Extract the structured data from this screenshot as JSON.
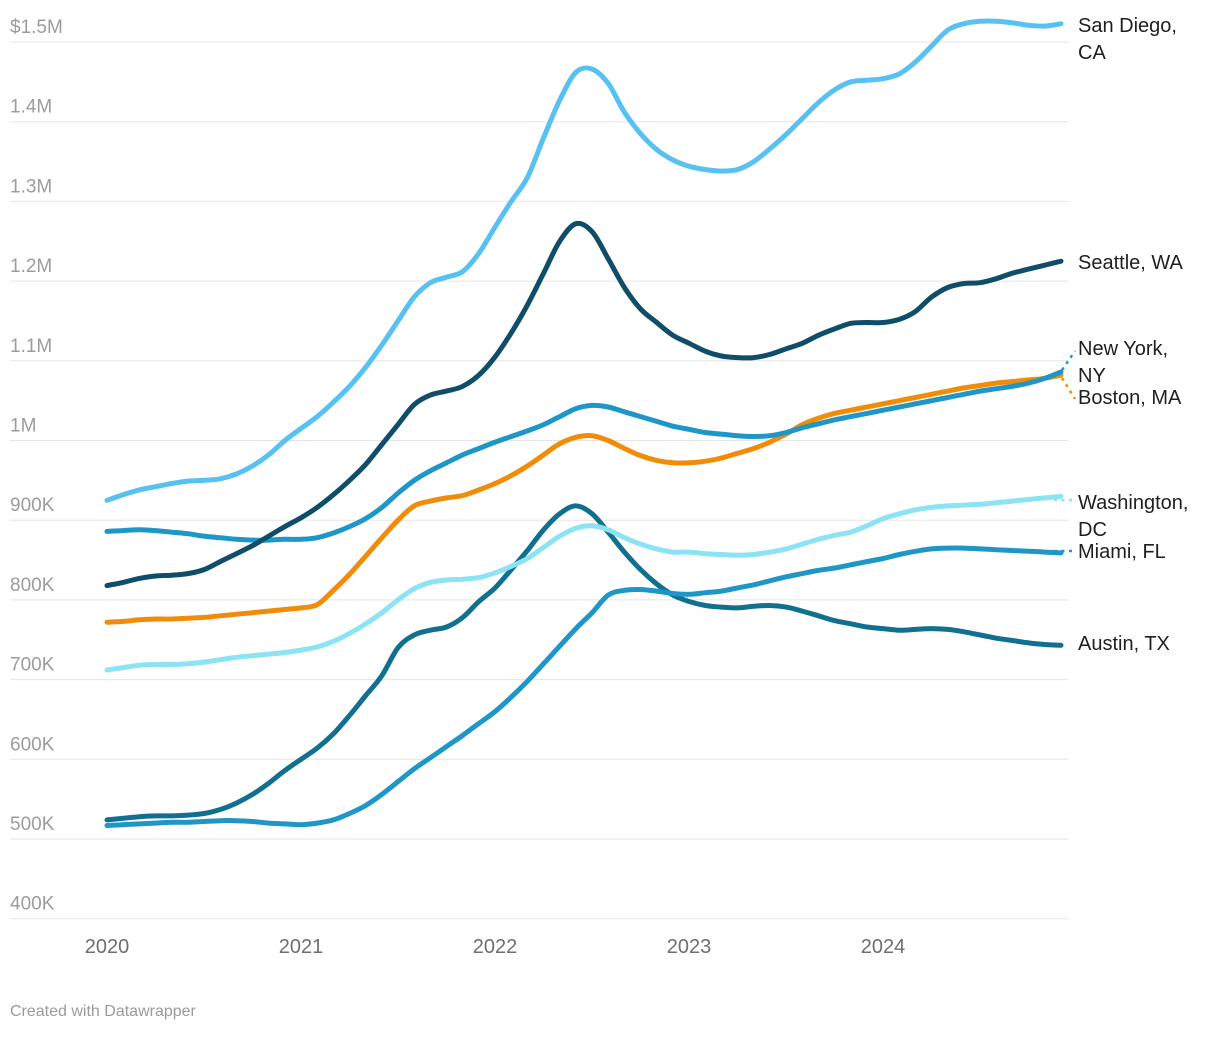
{
  "chart_data": {
    "type": "line",
    "title": "",
    "y_unit": "USD thousands",
    "x_start": "2020-01",
    "x_interval": "monthly",
    "x_end": "2024-12",
    "x_ticks": [
      "2020",
      "2021",
      "2022",
      "2023",
      "2024"
    ],
    "y_ticks": [
      "$1.5M",
      "1.4M",
      "1.3M",
      "1.2M",
      "1.1M",
      "1M",
      "900K",
      "800K",
      "700K",
      "600K",
      "500K",
      "400K"
    ],
    "y_tick_values": [
      1500,
      1400,
      1300,
      1200,
      1100,
      1000,
      900,
      800,
      700,
      600,
      500,
      400
    ],
    "ylim": [
      400,
      1550
    ],
    "grid": "horizontal",
    "legend_position": "right-edge-labels",
    "series": [
      {
        "id": "san_diego",
        "label": "San Diego, CA",
        "label_lines": [
          "San Diego,",
          "CA"
        ],
        "color": "#57C1F1",
        "dash_leader": false,
        "values": [
          925,
          932,
          938,
          942,
          946,
          949,
          950,
          952,
          958,
          968,
          982,
          1000,
          1015,
          1030,
          1048,
          1068,
          1092,
          1120,
          1150,
          1180,
          1198,
          1205,
          1212,
          1235,
          1268,
          1300,
          1330,
          1380,
          1427,
          1462,
          1466,
          1448,
          1412,
          1385,
          1365,
          1352,
          1344,
          1340,
          1338,
          1340,
          1350,
          1366,
          1384,
          1404,
          1424,
          1440,
          1450,
          1452,
          1454,
          1460,
          1475,
          1495,
          1515,
          1523,
          1526,
          1526,
          1524,
          1521,
          1520,
          1523
        ]
      },
      {
        "id": "seattle",
        "label": "Seattle, WA",
        "label_lines": [
          "Seattle, WA"
        ],
        "color": "#0F4D68",
        "dash_leader": false,
        "values": [
          818,
          822,
          827,
          830,
          831,
          833,
          838,
          848,
          858,
          868,
          880,
          892,
          903,
          916,
          932,
          950,
          970,
          995,
          1020,
          1045,
          1057,
          1062,
          1068,
          1082,
          1105,
          1135,
          1170,
          1210,
          1250,
          1272,
          1262,
          1228,
          1192,
          1165,
          1148,
          1132,
          1122,
          1112,
          1106,
          1104,
          1104,
          1108,
          1115,
          1122,
          1132,
          1140,
          1147,
          1148,
          1148,
          1152,
          1162,
          1180,
          1192,
          1197,
          1198,
          1203,
          1210,
          1215,
          1220,
          1225
        ]
      },
      {
        "id": "new_york",
        "label": "New York, NY",
        "label_lines": [
          "New York,",
          "NY"
        ],
        "color": "#1E96C8",
        "dash_leader": true,
        "values": [
          886,
          887,
          888,
          887,
          885,
          883,
          880,
          878,
          876,
          875,
          875,
          876,
          876,
          878,
          884,
          892,
          902,
          916,
          934,
          950,
          962,
          972,
          982,
          990,
          998,
          1005,
          1012,
          1020,
          1030,
          1040,
          1044,
          1042,
          1036,
          1030,
          1024,
          1018,
          1014,
          1010,
          1008,
          1006,
          1005,
          1006,
          1010,
          1016,
          1021,
          1026,
          1030,
          1034,
          1038,
          1042,
          1046,
          1050,
          1054,
          1058,
          1062,
          1065,
          1068,
          1072,
          1078,
          1086
        ]
      },
      {
        "id": "boston",
        "label": "Boston, MA",
        "label_lines": [
          "Boston, MA"
        ],
        "color": "#F18C09",
        "dash_leader": true,
        "values": [
          772,
          773,
          775,
          776,
          776,
          777,
          778,
          780,
          782,
          784,
          786,
          788,
          790,
          794,
          812,
          832,
          855,
          878,
          900,
          918,
          924,
          928,
          931,
          938,
          946,
          956,
          968,
          982,
          996,
          1004,
          1006,
          1000,
          990,
          981,
          975,
          972,
          972,
          974,
          978,
          984,
          990,
          998,
          1008,
          1020,
          1028,
          1034,
          1038,
          1042,
          1046,
          1050,
          1054,
          1058,
          1062,
          1066,
          1069,
          1072,
          1074,
          1076,
          1078,
          1082
        ]
      },
      {
        "id": "washington",
        "label": "Washington, DC",
        "label_lines": [
          "Washington,",
          "DC"
        ],
        "color": "#8BE3F3",
        "dash_leader": true,
        "values": [
          712,
          715,
          718,
          719,
          719,
          720,
          722,
          725,
          728,
          730,
          732,
          734,
          737,
          741,
          748,
          758,
          770,
          784,
          800,
          814,
          822,
          825,
          826,
          828,
          834,
          842,
          852,
          866,
          880,
          890,
          893,
          888,
          878,
          870,
          864,
          860,
          860,
          858,
          857,
          856,
          857,
          860,
          864,
          870,
          876,
          881,
          885,
          893,
          902,
          908,
          913,
          916,
          918,
          919,
          920,
          922,
          924,
          926,
          928,
          930
        ]
      },
      {
        "id": "miami",
        "label": "Miami, FL",
        "label_lines": [
          "Miami, FL"
        ],
        "color": "#1E96C8",
        "dash_leader": true,
        "values": [
          517,
          518,
          519,
          520,
          521,
          521,
          522,
          523,
          523,
          522,
          520,
          519,
          518,
          520,
          524,
          532,
          542,
          556,
          572,
          588,
          602,
          616,
          630,
          645,
          660,
          678,
          698,
          720,
          742,
          764,
          784,
          806,
          812,
          813,
          811,
          808,
          807,
          809,
          811,
          815,
          819,
          824,
          829,
          833,
          837,
          840,
          844,
          848,
          852,
          857,
          861,
          864,
          865,
          865,
          864,
          863,
          862,
          861,
          860,
          859
        ]
      },
      {
        "id": "austin",
        "label": "Austin, TX",
        "label_lines": [
          "Austin, TX"
        ],
        "color": "#11708F",
        "dash_leader": false,
        "values": [
          524,
          526,
          528,
          529,
          529,
          530,
          532,
          537,
          545,
          556,
          570,
          586,
          600,
          614,
          632,
          655,
          680,
          705,
          740,
          756,
          762,
          766,
          778,
          798,
          815,
          838,
          862,
          888,
          908,
          918,
          908,
          885,
          860,
          838,
          820,
          806,
          798,
          793,
          791,
          790,
          792,
          793,
          791,
          786,
          780,
          774,
          770,
          766,
          764,
          762,
          763,
          764,
          763,
          760,
          756,
          752,
          749,
          746,
          744,
          743
        ]
      }
    ]
  },
  "footer": {
    "credit": "Created with Datawrapper"
  }
}
